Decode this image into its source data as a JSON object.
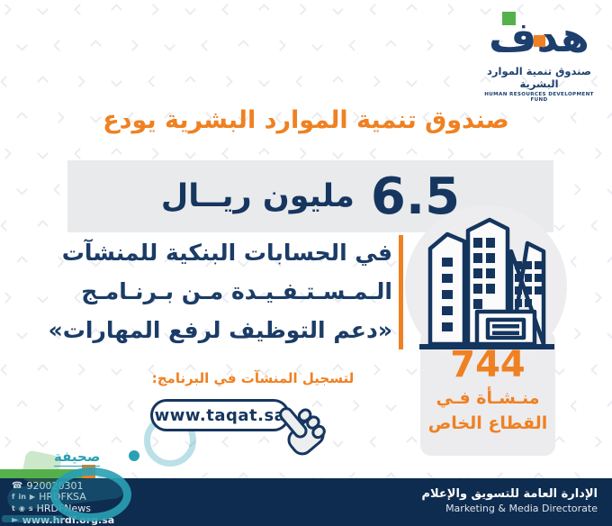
{
  "logo": {
    "wordmark": "هدف",
    "name_ar": "صندوق تنمية الموارد البشرية",
    "name_en": "HUMAN RESOURCES DEVELOPMENT FUND"
  },
  "headline": "صندوق تنمية الموارد البشرية يودع",
  "amount": {
    "value": "6.5",
    "unit": "مليون ريــال"
  },
  "body": {
    "line1": "في الحسابات البنكية للمنشآت",
    "line2": "الـمـسـتـفـيـدة مـن بـرنـامـج",
    "line3": "«دعم التوظيف لرفع المهارات»"
  },
  "stat": {
    "value": "744",
    "line1": "منـشـأة فـي",
    "line2": "القطاع الخاص"
  },
  "register": {
    "label": "لتسجيل المنشآت في البرنامج:",
    "url": "www.taqat.sa"
  },
  "watermark": {
    "source": "صحيفة"
  },
  "footer": {
    "phone_icon": "☎",
    "phone": "920020301",
    "social_row1": {
      "icons": [
        "f",
        "in",
        "▶"
      ],
      "handle": "HRDFKSA"
    },
    "social_row2": {
      "icons": [
        "t",
        "◉",
        "s"
      ],
      "handle": "HRDFNews"
    },
    "site_icon": "►",
    "website": "www.hrdf.org.sa",
    "dept_ar": "الإدارة العامة للتسويق والإعلام",
    "dept_en": "Marketing & Media Directorate"
  },
  "colors": {
    "navy": "#1b3c66",
    "footer_navy": "#0e2c50",
    "orange": "#ef8122",
    "green": "#55b14b",
    "teal": "#2aa0b3",
    "gray_band": "#e9eaec"
  }
}
